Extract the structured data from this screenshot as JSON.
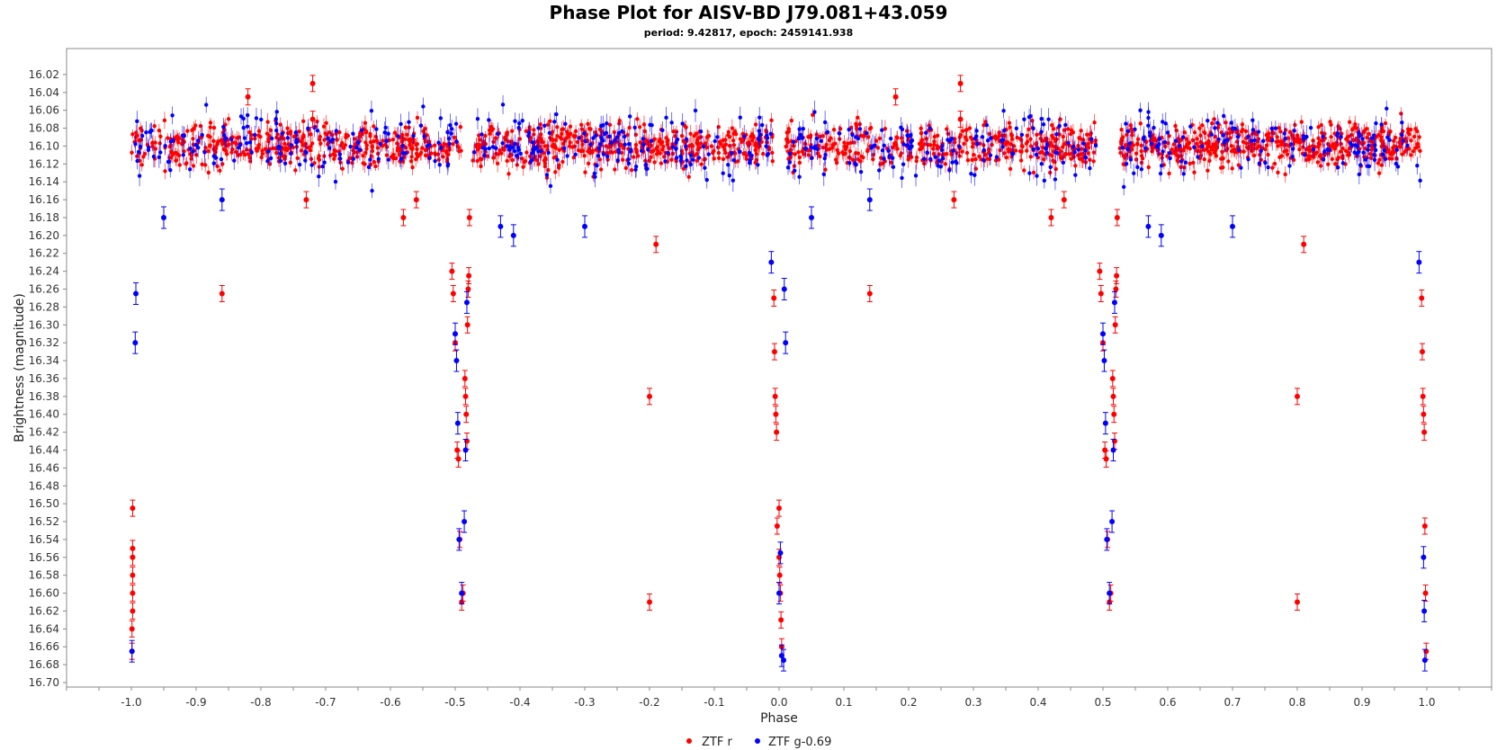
{
  "chart_data": {
    "type": "scatter",
    "title": "Phase Plot for AISV-BD J79.081+43.059",
    "subtitle": "period: 9.42817, epoch: 2459141.938",
    "xlabel": "Phase",
    "ylabel": "Brightness (magnitude)",
    "xlim": [
      -1.1,
      1.1
    ],
    "ylim": [
      16.7,
      16.0
    ],
    "y_inverted": true,
    "grid": false,
    "error_bars": true,
    "legend_position": "bottom-center",
    "x_ticks": [
      "-1.0",
      "-0.9",
      "-0.8",
      "-0.7",
      "-0.6",
      "-0.5",
      "-0.4",
      "-0.3",
      "-0.2",
      "-0.1",
      "0.0",
      "0.1",
      "0.2",
      "0.3",
      "0.4",
      "0.5",
      "0.6",
      "0.7",
      "0.8",
      "0.9",
      "1.0"
    ],
    "y_ticks": [
      "16.02",
      "16.04",
      "16.06",
      "16.08",
      "16.10",
      "16.12",
      "16.14",
      "16.16",
      "16.18",
      "16.20",
      "16.22",
      "16.24",
      "16.26",
      "16.28",
      "16.30",
      "16.32",
      "16.34",
      "16.36",
      "16.38",
      "16.40",
      "16.42",
      "16.44",
      "16.46",
      "16.48",
      "16.50",
      "16.52",
      "16.54",
      "16.56",
      "16.58",
      "16.60",
      "16.62",
      "16.64",
      "16.66",
      "16.68",
      "16.70"
    ],
    "series": [
      {
        "name": "ZTF r",
        "color": "#ff0000",
        "points": [
          [
            -0.998,
            16.505
          ],
          [
            -0.998,
            16.55
          ],
          [
            -0.998,
            16.56
          ],
          [
            -0.998,
            16.58
          ],
          [
            -0.998,
            16.6
          ],
          [
            -0.998,
            16.62
          ],
          [
            -0.999,
            16.64
          ],
          [
            -0.999,
            16.665
          ],
          [
            -0.86,
            16.265
          ],
          [
            -0.82,
            16.045
          ],
          [
            -0.72,
            16.03
          ],
          [
            -0.72,
            16.07
          ],
          [
            -0.73,
            16.16
          ],
          [
            -0.58,
            16.18
          ],
          [
            -0.56,
            16.16
          ],
          [
            -0.505,
            16.24
          ],
          [
            -0.503,
            16.265
          ],
          [
            -0.5,
            16.32
          ],
          [
            -0.497,
            16.44
          ],
          [
            -0.495,
            16.45
          ],
          [
            -0.493,
            16.54
          ],
          [
            -0.49,
            16.61
          ],
          [
            -0.488,
            16.6
          ],
          [
            -0.485,
            16.36
          ],
          [
            -0.484,
            16.38
          ],
          [
            -0.483,
            16.4
          ],
          [
            -0.482,
            16.43
          ],
          [
            -0.481,
            16.3
          ],
          [
            -0.48,
            16.26
          ],
          [
            -0.479,
            16.245
          ],
          [
            -0.478,
            16.18
          ],
          [
            -0.2,
            16.38
          ],
          [
            -0.2,
            16.61
          ],
          [
            -0.19,
            16.21
          ],
          [
            -0.008,
            16.27
          ],
          [
            -0.007,
            16.33
          ],
          [
            -0.006,
            16.38
          ],
          [
            -0.005,
            16.4
          ],
          [
            -0.004,
            16.42
          ],
          [
            -0.003,
            16.525
          ],
          [
            0.0,
            16.505
          ],
          [
            0.0,
            16.56
          ],
          [
            0.001,
            16.58
          ],
          [
            0.002,
            16.6
          ],
          [
            0.003,
            16.63
          ],
          [
            0.004,
            16.66
          ],
          [
            0.14,
            16.265
          ],
          [
            0.18,
            16.045
          ],
          [
            0.28,
            16.03
          ],
          [
            0.28,
            16.07
          ],
          [
            0.27,
            16.16
          ],
          [
            0.42,
            16.18
          ],
          [
            0.44,
            16.16
          ],
          [
            0.495,
            16.24
          ],
          [
            0.497,
            16.265
          ],
          [
            0.5,
            16.32
          ],
          [
            0.503,
            16.44
          ],
          [
            0.505,
            16.45
          ],
          [
            0.507,
            16.54
          ],
          [
            0.51,
            16.61
          ],
          [
            0.512,
            16.6
          ],
          [
            0.515,
            16.36
          ],
          [
            0.516,
            16.38
          ],
          [
            0.517,
            16.4
          ],
          [
            0.518,
            16.43
          ],
          [
            0.519,
            16.3
          ],
          [
            0.52,
            16.26
          ],
          [
            0.521,
            16.245
          ],
          [
            0.522,
            16.18
          ],
          [
            0.8,
            16.38
          ],
          [
            0.8,
            16.61
          ],
          [
            0.81,
            16.21
          ],
          [
            0.992,
            16.27
          ],
          [
            0.993,
            16.33
          ],
          [
            0.994,
            16.38
          ],
          [
            0.995,
            16.4
          ],
          [
            0.996,
            16.42
          ],
          [
            0.997,
            16.525
          ],
          [
            0.998,
            16.6
          ],
          [
            0.999,
            16.665
          ]
        ]
      },
      {
        "name": "ZTF g-0.69",
        "color": "#0000ff",
        "points": [
          [
            -0.993,
            16.265
          ],
          [
            -0.994,
            16.32
          ],
          [
            -0.999,
            16.665
          ],
          [
            -0.95,
            16.18
          ],
          [
            -0.86,
            16.16
          ],
          [
            -0.5,
            16.31
          ],
          [
            -0.498,
            16.34
          ],
          [
            -0.496,
            16.41
          ],
          [
            -0.494,
            16.54
          ],
          [
            -0.49,
            16.6
          ],
          [
            -0.486,
            16.52
          ],
          [
            -0.484,
            16.44
          ],
          [
            -0.482,
            16.275
          ],
          [
            -0.43,
            16.19
          ],
          [
            -0.41,
            16.2
          ],
          [
            -0.3,
            16.19
          ],
          [
            -0.012,
            16.23
          ],
          [
            0.0,
            16.6
          ],
          [
            0.002,
            16.555
          ],
          [
            0.004,
            16.67
          ],
          [
            0.008,
            16.26
          ],
          [
            0.01,
            16.32
          ],
          [
            0.007,
            16.675
          ],
          [
            0.05,
            16.18
          ],
          [
            0.14,
            16.16
          ],
          [
            0.5,
            16.31
          ],
          [
            0.502,
            16.34
          ],
          [
            0.504,
            16.41
          ],
          [
            0.506,
            16.54
          ],
          [
            0.51,
            16.6
          ],
          [
            0.514,
            16.52
          ],
          [
            0.516,
            16.44
          ],
          [
            0.518,
            16.275
          ],
          [
            0.57,
            16.19
          ],
          [
            0.59,
            16.2
          ],
          [
            0.7,
            16.19
          ],
          [
            0.988,
            16.23
          ],
          [
            0.995,
            16.56
          ],
          [
            0.996,
            16.62
          ],
          [
            0.997,
            16.675
          ]
        ]
      }
    ]
  }
}
